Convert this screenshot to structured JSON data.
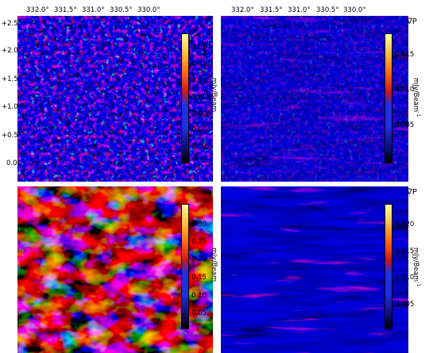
{
  "panels": [
    {
      "id": "top-left",
      "symbol": "P",
      "units": "mJy/Beam",
      "units_superscript": "",
      "x_ticks": [
        "332.0°",
        "331.5°",
        "331.0°",
        "330.5°",
        "330.0°"
      ],
      "y_ticks": [
        "+2.5°",
        "+2.0°",
        "+1.5°",
        "+1.0°",
        "+0.5°",
        "0.0°"
      ],
      "colorbar_ticks": [
        "0.014",
        "0.012",
        "0.010",
        "0.008",
        "0.006",
        "0.004",
        "0.002"
      ]
    },
    {
      "id": "top-right",
      "symbol": "∇P",
      "units": "mJy/Beam",
      "units_superscript": "-1",
      "x_ticks": [
        "332.0°",
        "331.5°",
        "331.0°",
        "330.5°",
        "330.0°"
      ],
      "colorbar_ticks": [
        "0.015",
        "0.010",
        "0.005"
      ]
    },
    {
      "id": "bottom-left",
      "symbol": "P",
      "units": "mJy/Beam",
      "units_superscript": "",
      "colorbar_ticks": [
        "0.30",
        "0.25",
        "0.20",
        "0.15",
        "0.10",
        "0.05"
      ]
    },
    {
      "id": "bottom-right",
      "symbol": "∇P",
      "units": "mJy/Beam",
      "units_superscript": "-1",
      "colorbar_ticks": [
        "0.020",
        "0.015",
        "0.010",
        "0.005"
      ]
    }
  ],
  "colors": {
    "background_blue": "#1a26c8",
    "deep_blue": "#0a0a5a",
    "red": "#e0201a",
    "orange": "#ff8c1a",
    "yellow": "#f5e86a",
    "white": "#ffffff"
  }
}
